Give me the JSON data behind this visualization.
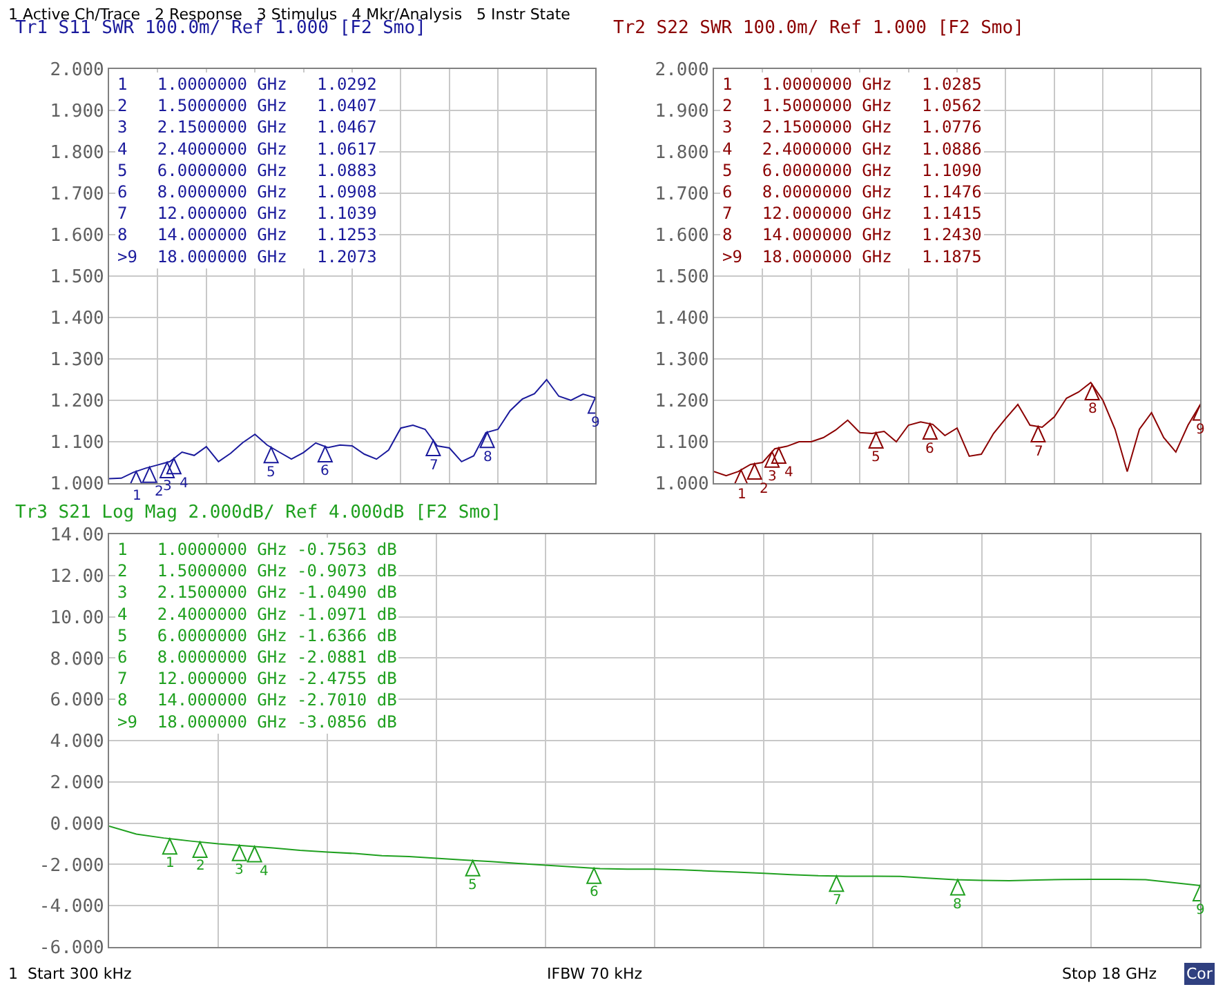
{
  "chart_data": [
    {
      "type": "line",
      "title": "Tr1 S11 SWR 100.0m/ Ref 1.000 [F2 Smo]",
      "grid": true,
      "tick_labels": "y",
      "categories": [
        null,
        null,
        null,
        null,
        null,
        null,
        null,
        null,
        null,
        null,
        null,
        null,
        null,
        null,
        null,
        null,
        null,
        null,
        null,
        null,
        null,
        null,
        null,
        null,
        null,
        null,
        null,
        null,
        null,
        null,
        null,
        null,
        null,
        null,
        null,
        null,
        null,
        null,
        null,
        null,
        null
      ],
      "ylim": [
        1.0,
        2.0
      ],
      "yticks": [
        {
          "value": 1.0,
          "label": "1.000"
        },
        {
          "value": 1.1,
          "label": "1.100"
        },
        {
          "value": 1.2,
          "label": "1.200"
        },
        {
          "value": 1.3,
          "label": "1.300"
        },
        {
          "value": 1.4,
          "label": "1.400"
        },
        {
          "value": 1.5,
          "label": "1.500"
        },
        {
          "value": 1.6,
          "label": "1.600"
        },
        {
          "value": 1.7,
          "label": "1.700"
        },
        {
          "value": 1.8,
          "label": "1.800"
        },
        {
          "value": 1.9,
          "label": "1.900"
        },
        {
          "value": 2.0,
          "label": "2.000"
        }
      ],
      "annotations": [
        "1   1.0000000 GHz   1.0292\n2   1.5000000 GHz   1.0407\n3   2.1500000 GHz   1.0467\n4   2.4000000 GHz   1.0617\n5   6.0000000 GHz   1.0883\n6   8.0000000 GHz   1.0908\n7   12.000000 GHz   1.1039\n8   14.000000 GHz   1.1253\n>9  18.000000 GHz   1.2073",
        "1 Active Ch/Trace   2 Response   3 Stimulus   4 Mkr/Analysis   5 Instr State",
        "1",
        "2",
        "3",
        "4",
        "5",
        "6",
        "7",
        "8",
        "9"
      ],
      "series": [
        {
          "color": "#1a1a9c",
          "values": [
            1.011,
            1.012,
            1.026,
            1.036,
            1.044,
            1.052,
            1.075,
            1.067,
            1.088,
            1.052,
            1.072,
            1.098,
            1.118,
            1.092,
            1.075,
            1.058,
            1.074,
            1.097,
            1.086,
            1.092,
            1.09,
            1.07,
            1.058,
            1.08,
            1.133,
            1.14,
            1.13,
            1.09,
            1.085,
            1.052,
            1.066,
            1.122,
            1.13,
            1.175,
            1.203,
            1.216,
            1.25,
            1.21,
            1.2,
            1.215,
            1.206
          ]
        }
      ]
    },
    {
      "type": "line",
      "title": "Tr2 S22 SWR 100.0m/ Ref 1.000 [F2 Smo]",
      "grid": true,
      "tick_labels": "y",
      "categories": [
        null,
        null,
        null,
        null,
        null,
        null,
        null,
        null,
        null,
        null,
        null,
        null,
        null,
        null,
        null,
        null,
        null,
        null,
        null,
        null,
        null,
        null,
        null,
        null,
        null,
        null,
        null,
        null,
        null,
        null,
        null,
        null,
        null,
        null,
        null,
        null,
        null,
        null,
        null,
        null,
        null
      ],
      "ylim": [
        1.0,
        2.0
      ],
      "yticks": [
        {
          "value": 1.0,
          "label": "1.000"
        },
        {
          "value": 1.1,
          "label": "1.100"
        },
        {
          "value": 1.2,
          "label": "1.200"
        },
        {
          "value": 1.3,
          "label": "1.300"
        },
        {
          "value": 1.4,
          "label": "1.400"
        },
        {
          "value": 1.5,
          "label": "1.500"
        },
        {
          "value": 1.6,
          "label": "1.600"
        },
        {
          "value": 1.7,
          "label": "1.700"
        },
        {
          "value": 1.8,
          "label": "1.800"
        },
        {
          "value": 1.9,
          "label": "1.900"
        },
        {
          "value": 2.0,
          "label": "2.000"
        }
      ],
      "annotations": [
        "1   1.0000000 GHz   1.0285\n2   1.5000000 GHz   1.0562\n3   2.1500000 GHz   1.0776\n4   2.4000000 GHz   1.0886\n5   6.0000000 GHz   1.1090\n6   8.0000000 GHz   1.1476\n7   12.000000 GHz   1.1415\n8   14.000000 GHz   1.2430\n>9  18.000000 GHz   1.1875",
        "1",
        "2",
        "3",
        "4",
        "5",
        "6",
        "7",
        "8",
        "9"
      ],
      "series": [
        {
          "color": "#8b0000",
          "values": [
            1.028,
            1.018,
            1.028,
            1.045,
            1.05,
            1.083,
            1.089,
            1.1,
            1.1,
            1.11,
            1.128,
            1.152,
            1.122,
            1.12,
            1.125,
            1.1,
            1.14,
            1.148,
            1.142,
            1.115,
            1.133,
            1.065,
            1.07,
            1.12,
            1.156,
            1.19,
            1.14,
            1.135,
            1.16,
            1.205,
            1.22,
            1.243,
            1.2,
            1.13,
            1.028,
            1.13,
            1.17,
            1.11,
            1.075,
            1.14,
            1.189
          ]
        }
      ]
    },
    {
      "type": "line",
      "title": "Tr3 S21 Log Mag 2.000dB/ Ref 4.000dB [F2 Smo]",
      "grid": true,
      "tick_labels": "y",
      "categories": [
        null,
        null,
        null,
        null,
        null,
        null,
        null,
        null,
        null,
        null,
        null,
        null,
        null,
        null,
        null,
        null,
        null,
        null,
        null,
        null,
        null,
        null,
        null,
        null,
        null,
        null,
        null,
        null,
        null,
        null,
        null,
        null,
        null,
        null,
        null,
        null,
        null,
        null,
        null,
        null,
        null
      ],
      "ylim": [
        -6,
        14
      ],
      "yticks": [
        {
          "value": -6,
          "label": "-6.000"
        },
        {
          "value": -4,
          "label": "-4.000"
        },
        {
          "value": -2,
          "label": "-2.000"
        },
        {
          "value": 0,
          "label": "0.000"
        },
        {
          "value": 2,
          "label": "2.000"
        },
        {
          "value": 4,
          "label": "4.000"
        },
        {
          "value": 6,
          "label": "6.000"
        },
        {
          "value": 8,
          "label": "8.000"
        },
        {
          "value": 10,
          "label": "10.00"
        },
        {
          "value": 12,
          "label": "12.00"
        },
        {
          "value": 14,
          "label": "14.00"
        }
      ],
      "annotations": [
        "1   1.0000000 GHz -0.7563 dB\n2   1.5000000 GHz -0.9073 dB\n3   2.1500000 GHz -1.0490 dB\n4   2.4000000 GHz -1.0971 dB\n5   6.0000000 GHz -1.6366 dB\n6   8.0000000 GHz -2.0881 dB\n7   12.000000 GHz -2.4755 dB\n8   14.000000 GHz -2.7010 dB\n>9  18.000000 GHz -3.0856 dB",
        "1",
        "Start 300 kHz",
        "IFBW 70 kHz",
        "Stop 18 GHz",
        "Cor",
        "1",
        "2",
        "3",
        "4",
        "5",
        "6",
        "7",
        "8",
        "9"
      ],
      "series": [
        {
          "color": "#1fa01f",
          "values": [
            -0.15,
            -0.53,
            -0.72,
            -0.87,
            -1.0,
            -1.1,
            -1.2,
            -1.32,
            -1.4,
            -1.47,
            -1.58,
            -1.62,
            -1.7,
            -1.79,
            -1.86,
            -1.95,
            -2.04,
            -2.12,
            -2.2,
            -2.23,
            -2.23,
            -2.26,
            -2.32,
            -2.37,
            -2.43,
            -2.5,
            -2.55,
            -2.57,
            -2.57,
            -2.58,
            -2.66,
            -2.74,
            -2.77,
            -2.79,
            -2.76,
            -2.73,
            -2.72,
            -2.72,
            -2.74,
            -2.88,
            -3.02
          ]
        }
      ]
    }
  ]
}
